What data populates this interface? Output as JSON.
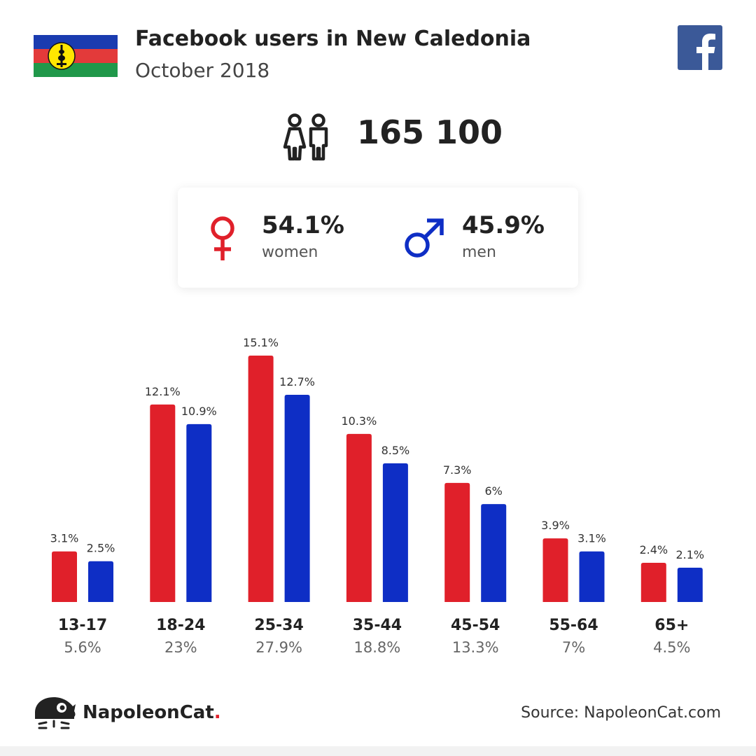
{
  "header": {
    "title": "Facebook users in New Caledonia",
    "subtitle": "October 2018"
  },
  "flag": {
    "colors": [
      "#1a3bb0",
      "#e33a3a",
      "#20984a"
    ],
    "emblem": "#ffe600"
  },
  "total": "165 100",
  "gender": {
    "women": {
      "pct": "54.1%",
      "label": "women",
      "color": "#e0202a"
    },
    "men": {
      "pct": "45.9%",
      "label": "men",
      "color": "#0e2ec5"
    }
  },
  "chart_data": {
    "type": "bar",
    "categories": [
      "13-17",
      "18-24",
      "25-34",
      "35-44",
      "45-54",
      "55-64",
      "65+"
    ],
    "category_totals": [
      "5.6%",
      "23%",
      "27.9%",
      "18.8%",
      "13.3%",
      "7%",
      "4.5%"
    ],
    "series": [
      {
        "name": "women",
        "color": "#e0202a",
        "values": [
          3.1,
          12.1,
          15.1,
          10.3,
          7.3,
          3.9,
          2.4
        ],
        "labels": [
          "3.1%",
          "12.1%",
          "15.1%",
          "10.3%",
          "7.3%",
          "3.9%",
          "2.4%"
        ]
      },
      {
        "name": "men",
        "color": "#0e2ec5",
        "values": [
          2.5,
          10.9,
          12.7,
          8.5,
          6,
          3.1,
          2.1
        ],
        "labels": [
          "2.5%",
          "10.9%",
          "12.7%",
          "8.5%",
          "6%",
          "3.1%",
          "2.1%"
        ]
      }
    ],
    "ylim": [
      0,
      15.1
    ],
    "grid": false,
    "legend": "none"
  },
  "footer": {
    "brand": "NapoleonCat",
    "brand_dot": ".",
    "source": "Source: NapoleonCat.com"
  },
  "icons": {
    "facebook": "facebook-logo-icon",
    "people": "people-icon",
    "female": "female-symbol-icon",
    "male": "male-symbol-icon",
    "brand": "napoleoncat-logo-icon"
  }
}
